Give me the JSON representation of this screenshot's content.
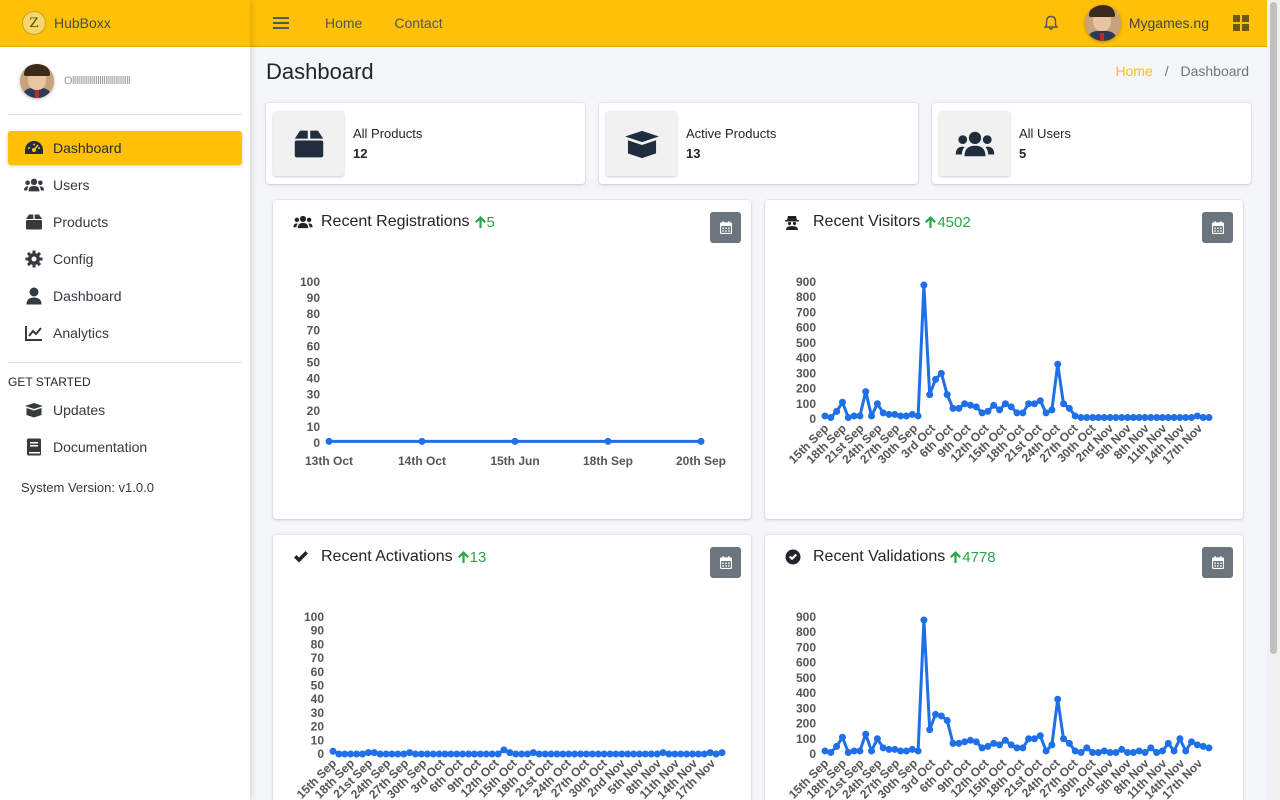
{
  "brand": {
    "title": "HubBoxx",
    "logo_letter": "Z"
  },
  "sidebar": {
    "user_name": "Ollllllllllllllllllllllllllllll",
    "items": [
      {
        "label": "Dashboard",
        "icon": "tachometer-icon",
        "active": true
      },
      {
        "label": "Users",
        "icon": "users-icon"
      },
      {
        "label": "Products",
        "icon": "box-icon"
      },
      {
        "label": "Config",
        "icon": "gear-icon"
      },
      {
        "label": "Dashboard",
        "icon": "user-icon"
      },
      {
        "label": "Analytics",
        "icon": "chart-line-icon"
      }
    ],
    "section_header": "GET STARTED",
    "extra_items": [
      {
        "label": "Updates",
        "icon": "box-open-icon"
      },
      {
        "label": "Documentation",
        "icon": "book-icon"
      }
    ],
    "system_version": "System Version: v1.0.0"
  },
  "topbar": {
    "links": [
      "Home",
      "Contact"
    ],
    "user_name": "Mygames.ng"
  },
  "page": {
    "title": "Dashboard",
    "breadcrumb": {
      "home": "Home",
      "current": "Dashboard",
      "separator": "/"
    }
  },
  "info_boxes": [
    {
      "label": "All Products",
      "value": "12",
      "icon": "box-icon"
    },
    {
      "label": "Active Products",
      "value": "13",
      "icon": "box-open-icon"
    },
    {
      "label": "All Users",
      "value": "5",
      "icon": "users-icon"
    }
  ],
  "cards": [
    {
      "title": "Recent Registrations",
      "delta": "5",
      "icon": "users-icon"
    },
    {
      "title": "Recent Visitors",
      "delta": "4502",
      "icon": "user-secret-icon"
    },
    {
      "title": "Recent Activations",
      "delta": "13",
      "icon": "check-icon"
    },
    {
      "title": "Recent Validations",
      "delta": "4778",
      "icon": "check-circle-icon"
    }
  ],
  "colors": {
    "accent": "#ffc107",
    "line": "#1e6fe8",
    "positive": "#28a745"
  },
  "chart_data": [
    {
      "type": "line",
      "title": "Recent Registrations",
      "categories": [
        "13th Oct",
        "14th Oct",
        "15th Jun",
        "18th Sep",
        "20th Sep"
      ],
      "values": [
        1,
        1,
        1,
        1,
        1
      ],
      "yticks": [
        0,
        10,
        20,
        30,
        40,
        50,
        60,
        70,
        80,
        90,
        100
      ],
      "ylim": [
        0,
        100
      ],
      "grid": false,
      "legend": "none"
    },
    {
      "type": "line",
      "title": "Recent Visitors",
      "tick_labels": [
        "15th Sep",
        "18th Sep",
        "21st Sep",
        "24th Sep",
        "27th Sep",
        "30th Sep",
        "3rd Oct",
        "6th Oct",
        "9th Oct",
        "12th Oct",
        "15th Oct",
        "18th Oct",
        "21st Oct",
        "24th Oct",
        "27th Oct",
        "30th Oct",
        "2nd Nov",
        "5th Nov",
        "8th Nov",
        "11th Nov",
        "14th Nov",
        "17th Nov"
      ],
      "values": [
        20,
        10,
        50,
        110,
        10,
        20,
        20,
        180,
        20,
        100,
        40,
        30,
        30,
        20,
        20,
        30,
        20,
        880,
        160,
        260,
        300,
        160,
        70,
        70,
        100,
        90,
        80,
        40,
        50,
        90,
        60,
        100,
        80,
        40,
        40,
        100,
        100,
        120,
        40,
        60,
        360,
        100,
        70,
        20,
        10,
        10,
        10,
        10,
        10,
        10,
        10,
        10,
        10,
        10,
        10,
        10,
        10,
        10,
        10,
        10,
        10,
        10,
        10,
        10,
        20,
        10,
        10
      ],
      "yticks": [
        0,
        100,
        200,
        300,
        400,
        500,
        600,
        700,
        800,
        900
      ],
      "ylim": [
        0,
        900
      ],
      "grid": false,
      "legend": "none"
    },
    {
      "type": "line",
      "title": "Recent Activations",
      "tick_labels": [
        "15th Sep",
        "18th Sep",
        "21st Sep",
        "24th Sep",
        "27th Sep",
        "30th Sep",
        "3rd Oct",
        "6th Oct",
        "9th Oct",
        "12th Oct",
        "15th Oct",
        "18th Oct",
        "21st Oct",
        "24th Oct",
        "27th Oct",
        "30th Oct",
        "2nd Nov",
        "5th Nov",
        "8th Nov",
        "11th Nov",
        "14th Nov",
        "17th Nov"
      ],
      "values": [
        2,
        0,
        0,
        0,
        0,
        0,
        1,
        1,
        0,
        0,
        0,
        0,
        0,
        1,
        0,
        0,
        0,
        0,
        0,
        0,
        0,
        0,
        0,
        0,
        0,
        0,
        0,
        0,
        0,
        3,
        1,
        0,
        0,
        0,
        1,
        0,
        0,
        0,
        0,
        0,
        0,
        0,
        0,
        0,
        0,
        0,
        0,
        0,
        0,
        0,
        0,
        0,
        0,
        0,
        0,
        0,
        1,
        0,
        0,
        0,
        0,
        0,
        0,
        0,
        1,
        0,
        1
      ],
      "yticks": [
        0,
        10,
        20,
        30,
        40,
        50,
        60,
        70,
        80,
        90,
        100
      ],
      "ylim": [
        0,
        100
      ],
      "grid": false,
      "legend": "none"
    },
    {
      "type": "line",
      "title": "Recent Validations",
      "tick_labels": [
        "15th Sep",
        "18th Sep",
        "21st Sep",
        "24th Sep",
        "27th Sep",
        "30th Sep",
        "3rd Oct",
        "6th Oct",
        "9th Oct",
        "12th Oct",
        "15th Oct",
        "18th Oct",
        "21st Oct",
        "24th Oct",
        "27th Oct",
        "30th Oct",
        "2nd Nov",
        "5th Nov",
        "8th Nov",
        "11th Nov",
        "14th Nov",
        "17th Nov"
      ],
      "values": [
        20,
        10,
        50,
        110,
        10,
        20,
        20,
        130,
        20,
        100,
        40,
        30,
        30,
        20,
        20,
        30,
        20,
        880,
        160,
        260,
        250,
        220,
        70,
        70,
        80,
        90,
        80,
        40,
        50,
        70,
        60,
        90,
        60,
        40,
        40,
        100,
        100,
        120,
        20,
        60,
        360,
        100,
        70,
        20,
        10,
        40,
        10,
        10,
        20,
        10,
        10,
        30,
        10,
        10,
        20,
        10,
        40,
        10,
        20,
        70,
        20,
        100,
        20,
        80,
        60,
        50,
        40
      ],
      "yticks": [
        0,
        100,
        200,
        300,
        400,
        500,
        600,
        700,
        800,
        900
      ],
      "ylim": [
        0,
        900
      ],
      "grid": false,
      "legend": "none"
    }
  ]
}
